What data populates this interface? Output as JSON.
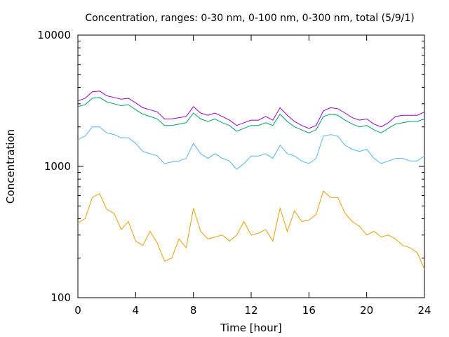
{
  "chart_data": {
    "type": "line",
    "title": "Concentration, ranges: 0-30 nm, 0-100 nm, 0-300 nm, total (5/9/1)",
    "xlabel": "Time [hour]",
    "ylabel": "Concentration",
    "xlim": [
      0,
      24
    ],
    "ylim": [
      100,
      10000
    ],
    "yscale": "log",
    "grid": false,
    "x_ticks": [
      0,
      4,
      8,
      12,
      16,
      20,
      24
    ],
    "x_tick_labels": [
      "0",
      "4",
      "8",
      "12",
      "16",
      "20",
      "24"
    ],
    "y_ticks": [
      100,
      1000,
      10000
    ],
    "y_tick_labels": [
      "100",
      "1000",
      "10000"
    ],
    "x": [
      0,
      0.5,
      1,
      1.5,
      2,
      2.5,
      3,
      3.5,
      4,
      4.5,
      5,
      5.5,
      6,
      6.5,
      7,
      7.5,
      8,
      8.5,
      9,
      9.5,
      10,
      10.5,
      11,
      11.5,
      12,
      12.5,
      13,
      13.5,
      14,
      14.5,
      15,
      15.5,
      16,
      16.5,
      17,
      17.5,
      18,
      18.5,
      19,
      19.5,
      20,
      20.5,
      21,
      21.5,
      22,
      22.5,
      23,
      23.5,
      24
    ],
    "series": [
      {
        "color": "#e69f00",
        "values": [
          370,
          400,
          580,
          620,
          470,
          440,
          330,
          380,
          270,
          250,
          320,
          260,
          190,
          200,
          280,
          240,
          480,
          320,
          280,
          290,
          300,
          270,
          300,
          380,
          300,
          310,
          330,
          270,
          480,
          320,
          460,
          380,
          390,
          430,
          650,
          580,
          580,
          440,
          380,
          350,
          300,
          320,
          290,
          300,
          280,
          250,
          240,
          220,
          165
        ]
      },
      {
        "color": "#56b4e9",
        "values": [
          1600,
          1700,
          2000,
          2000,
          1800,
          1750,
          1650,
          1650,
          1500,
          1300,
          1250,
          1200,
          1050,
          1080,
          1100,
          1150,
          1500,
          1250,
          1150,
          1250,
          1150,
          1100,
          950,
          1050,
          1200,
          1200,
          1250,
          1150,
          1450,
          1250,
          1200,
          1100,
          1050,
          1150,
          1700,
          1750,
          1700,
          1450,
          1350,
          1300,
          1350,
          1150,
          1050,
          1100,
          1150,
          1150,
          1100,
          1100,
          1200
        ]
      },
      {
        "color": "#009e73",
        "values": [
          2850,
          2950,
          3300,
          3350,
          3100,
          3000,
          2900,
          2950,
          2700,
          2500,
          2400,
          2300,
          2050,
          2050,
          2100,
          2150,
          2550,
          2300,
          2200,
          2300,
          2150,
          2050,
          1850,
          1950,
          2050,
          2050,
          2150,
          2050,
          2500,
          2200,
          2000,
          1900,
          1800,
          1900,
          2400,
          2500,
          2450,
          2250,
          2100,
          2000,
          2050,
          1900,
          1800,
          1950,
          2100,
          2150,
          2200,
          2200,
          2300
        ]
      },
      {
        "color": "#9400d3",
        "values": [
          3150,
          3300,
          3700,
          3750,
          3450,
          3350,
          3250,
          3300,
          3050,
          2800,
          2700,
          2600,
          2300,
          2300,
          2350,
          2400,
          2850,
          2550,
          2450,
          2550,
          2400,
          2250,
          2050,
          2150,
          2250,
          2250,
          2400,
          2250,
          2800,
          2450,
          2200,
          2050,
          1950,
          2050,
          2650,
          2800,
          2750,
          2550,
          2350,
          2250,
          2300,
          2100,
          2000,
          2150,
          2400,
          2450,
          2450,
          2450,
          2600
        ]
      }
    ]
  }
}
